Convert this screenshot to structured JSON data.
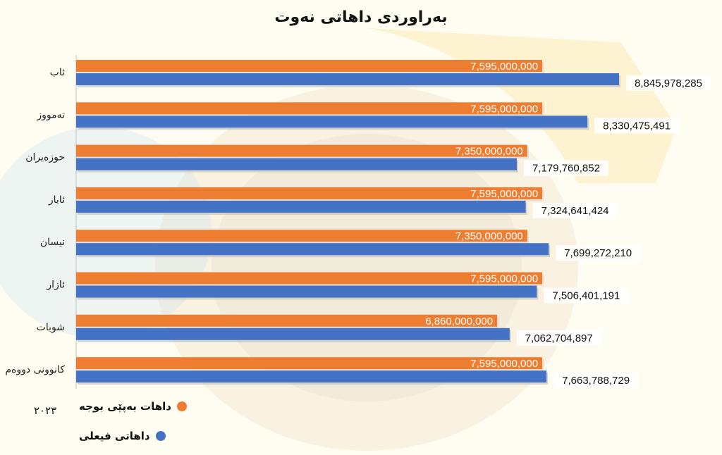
{
  "chart_data": {
    "type": "bar",
    "orientation": "horizontal",
    "title": "بەراوردی داهاتی نەوت",
    "categories": [
      "ئاب",
      "تەمووز",
      "حوزەیران",
      "ئایار",
      "نیسان",
      "ئازار",
      "شوبات",
      "کانوونی دووەم"
    ],
    "series": [
      {
        "name": "داهات بەپێی بوجە",
        "color": "#ed7d31",
        "values": [
          7595000000,
          7595000000,
          7350000000,
          7595000000,
          7350000000,
          7595000000,
          6860000000,
          7595000000
        ],
        "labels": [
          "7,595,000,000",
          "7,595,000,000",
          "7,350,000,000",
          "7,595,000,000",
          "7,350,000,000",
          "7,595,000,000",
          "6,860,000,000",
          "7,595,000,000"
        ]
      },
      {
        "name": "داهاتی فیعلی",
        "color": "#4472c4",
        "values": [
          8845978285,
          8330475491,
          7179760852,
          7324641424,
          7699272210,
          7506401191,
          7062704897,
          7663788729
        ],
        "labels": [
          "8,845,978,285",
          "8,330,475,491",
          "7,179,760,852",
          "7,324,641,424",
          "7,699,272,210",
          "7,506,401,191",
          "7,062,704,897",
          "7,663,788,729"
        ]
      }
    ],
    "xlim": [
      0,
      8845978285
    ],
    "grid": false,
    "legend_position": "bottom-left"
  },
  "year_label": "٢٠٢٣"
}
